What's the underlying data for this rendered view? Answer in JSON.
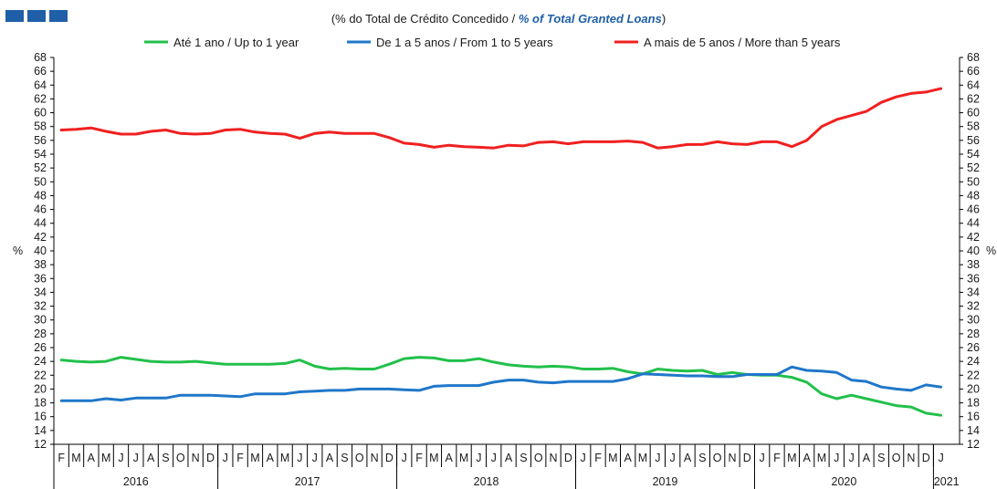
{
  "header": {
    "title_pt": "(% do Total de Crédito Concedido  / ",
    "title_en": "% of Total Granted Loans",
    "title_close": ")",
    "brand_color": "#1f5fa8"
  },
  "chart_data": {
    "type": "line",
    "ylabel_left": "%",
    "ylabel_right": "%",
    "ylim": [
      12,
      68
    ],
    "y_step": 2,
    "grid": false,
    "legend_placement": "top",
    "months": [
      "F",
      "M",
      "A",
      "M",
      "J",
      "J",
      "A",
      "S",
      "O",
      "N",
      "D",
      "J",
      "F",
      "M",
      "A",
      "M",
      "J",
      "J",
      "A",
      "S",
      "O",
      "N",
      "D",
      "J",
      "F",
      "M",
      "A",
      "M",
      "J",
      "J",
      "A",
      "S",
      "O",
      "N",
      "D",
      "J",
      "F",
      "M",
      "A",
      "M",
      "J",
      "J",
      "A",
      "S",
      "O",
      "N",
      "D",
      "J",
      "F",
      "M",
      "A",
      "M",
      "J",
      "J",
      "A",
      "S",
      "O",
      "N",
      "D",
      "J"
    ],
    "years": [
      {
        "label": "2016",
        "start": 0,
        "end": 10
      },
      {
        "label": "2017",
        "start": 11,
        "end": 22
      },
      {
        "label": "2018",
        "start": 23,
        "end": 34
      },
      {
        "label": "2019",
        "start": 35,
        "end": 46
      },
      {
        "label": "2020",
        "start": 47,
        "end": 58
      },
      {
        "label": "2021",
        "start": 59,
        "end": 59
      }
    ],
    "series": [
      {
        "name": "Até 1 ano / Up to 1 year",
        "color": "#22c04a",
        "values": [
          24.2,
          24.0,
          23.9,
          24.0,
          24.6,
          24.3,
          24.0,
          23.9,
          23.9,
          24.0,
          23.8,
          23.6,
          23.6,
          23.6,
          23.6,
          23.7,
          24.2,
          23.3,
          22.9,
          23.0,
          22.9,
          22.9,
          23.6,
          24.4,
          24.6,
          24.5,
          24.1,
          24.1,
          24.4,
          23.9,
          23.5,
          23.3,
          23.2,
          23.3,
          23.2,
          22.9,
          22.9,
          23.0,
          22.5,
          22.2,
          22.9,
          22.7,
          22.6,
          22.7,
          22.1,
          22.4,
          22.1,
          22.0,
          22.0,
          21.7,
          21.0,
          19.3,
          18.6,
          19.1,
          18.6,
          18.1,
          17.6,
          17.4,
          16.5,
          16.2
        ]
      },
      {
        "name": "De 1 a 5 anos / From 1 to 5 years",
        "color": "#1f77c9",
        "values": [
          18.3,
          18.3,
          18.3,
          18.6,
          18.4,
          18.7,
          18.7,
          18.7,
          19.1,
          19.1,
          19.1,
          19.0,
          18.9,
          19.3,
          19.3,
          19.3,
          19.6,
          19.7,
          19.8,
          19.8,
          20.0,
          20.0,
          20.0,
          19.9,
          19.8,
          20.4,
          20.5,
          20.5,
          20.5,
          21.0,
          21.3,
          21.3,
          21.0,
          20.9,
          21.1,
          21.1,
          21.1,
          21.1,
          21.5,
          22.2,
          22.1,
          22.0,
          21.9,
          21.9,
          21.8,
          21.8,
          22.1,
          22.1,
          22.1,
          23.2,
          22.7,
          22.6,
          22.4,
          21.3,
          21.1,
          20.3,
          20.0,
          19.8,
          20.6,
          20.3
        ]
      },
      {
        "name": "A mais de 5 anos / More than 5 years",
        "color": "#f02020",
        "values": [
          57.5,
          57.6,
          57.8,
          57.3,
          56.9,
          56.9,
          57.3,
          57.5,
          57.0,
          56.9,
          57.0,
          57.5,
          57.6,
          57.2,
          57.0,
          56.9,
          56.3,
          57.0,
          57.2,
          57.0,
          57.0,
          57.0,
          56.4,
          55.6,
          55.4,
          55.0,
          55.3,
          55.1,
          55.0,
          54.9,
          55.3,
          55.2,
          55.7,
          55.8,
          55.5,
          55.8,
          55.8,
          55.8,
          55.9,
          55.7,
          54.9,
          55.1,
          55.4,
          55.4,
          55.8,
          55.5,
          55.4,
          55.8,
          55.8,
          55.1,
          56.0,
          58.0,
          59.0,
          59.6,
          60.2,
          61.5,
          62.3,
          62.8,
          63.0,
          63.5
        ]
      }
    ]
  }
}
